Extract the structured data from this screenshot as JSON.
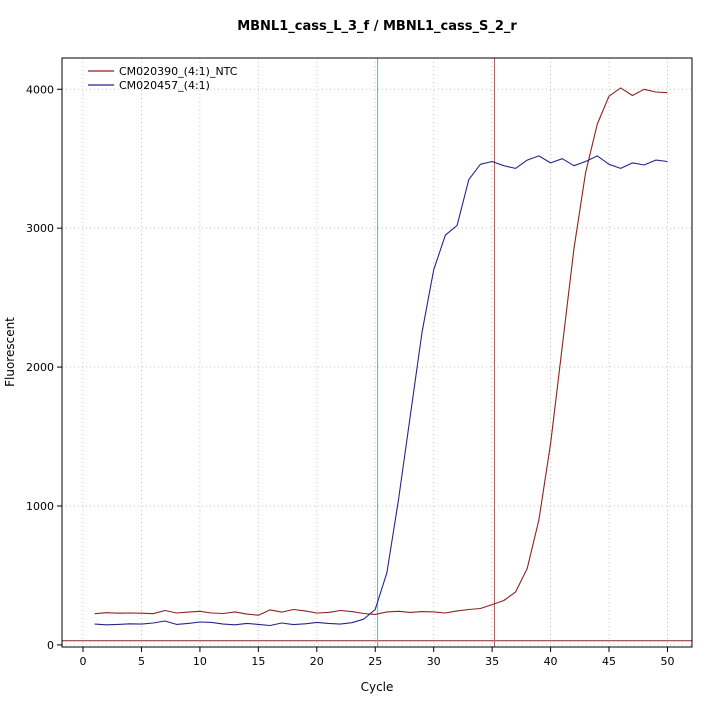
{
  "chart_data": {
    "type": "line",
    "title": "MBNL1_cass_L_3_f / MBNL1_cass_S_2_r",
    "xlabel": "Cycle",
    "ylabel": "Fluorescent",
    "xlim": [
      -1.8,
      52.1
    ],
    "ylim": [
      -15,
      4225
    ],
    "x_ticks": [
      0,
      5,
      10,
      15,
      20,
      25,
      30,
      35,
      40,
      45,
      50
    ],
    "y_ticks": [
      0,
      1000,
      2000,
      3000,
      4000
    ],
    "grid": true,
    "grid_color": "#c4c4c4",
    "legend_position": "top-left",
    "x": [
      1,
      2,
      3,
      4,
      5,
      6,
      7,
      8,
      9,
      10,
      11,
      12,
      13,
      14,
      15,
      16,
      17,
      18,
      19,
      20,
      21,
      22,
      23,
      24,
      25,
      26,
      27,
      28,
      29,
      30,
      31,
      32,
      33,
      34,
      35,
      36,
      37,
      38,
      39,
      40,
      41,
      42,
      43,
      44,
      45,
      46,
      47,
      48,
      49,
      50
    ],
    "series": [
      {
        "name": "CM020390_(4:1)_NTC",
        "color": "#8B2323",
        "values": [
          225,
          232,
          228,
          230,
          228,
          225,
          248,
          230,
          236,
          242,
          230,
          226,
          238,
          222,
          214,
          252,
          236,
          255,
          245,
          230,
          234,
          248,
          240,
          226,
          220,
          238,
          242,
          234,
          240,
          238,
          230,
          245,
          255,
          262,
          290,
          320,
          380,
          550,
          900,
          1450,
          2150,
          2850,
          3400,
          3750,
          3950,
          4010,
          3955,
          4000,
          3980,
          3975
        ]
      },
      {
        "name": "CM020457_(4:1)",
        "color": "#26268C",
        "values": [
          150,
          145,
          148,
          152,
          150,
          158,
          172,
          148,
          155,
          165,
          162,
          150,
          145,
          155,
          148,
          140,
          158,
          146,
          152,
          162,
          155,
          150,
          160,
          185,
          255,
          520,
          1050,
          1650,
          2250,
          2700,
          2950,
          3020,
          3350,
          3460,
          3480,
          3450,
          3430,
          3490,
          3520,
          3470,
          3500,
          3450,
          3480,
          3520,
          3460,
          3430,
          3470,
          3455,
          3490,
          3480
        ]
      }
    ],
    "vlines": [
      {
        "x": 25.2,
        "color": "#00DEDE",
        "label": "ct-line-sample"
      },
      {
        "x": 35.2,
        "color": "#B05E5E",
        "label": "ct-line-ntc"
      }
    ],
    "hlines": [
      {
        "y": 30,
        "color": "#8B2323",
        "label": "threshold-line"
      }
    ]
  }
}
